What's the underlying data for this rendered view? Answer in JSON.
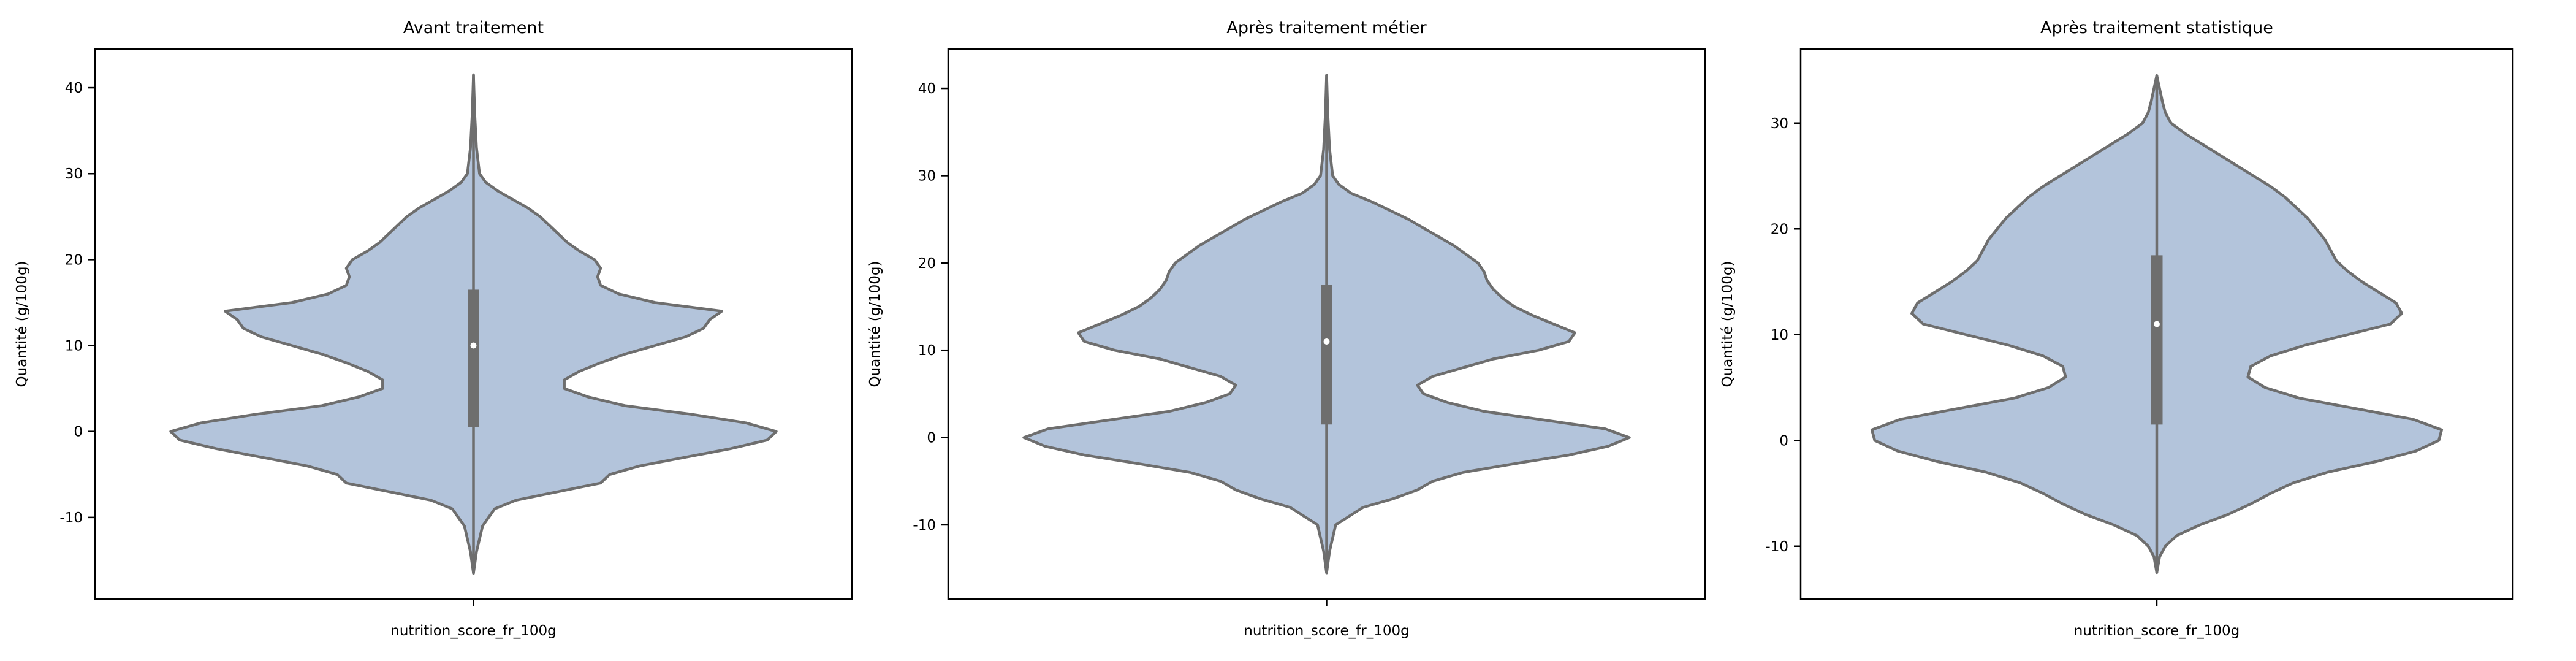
{
  "colors": {
    "violin_fill": "#b3c4db",
    "violin_edge": "#6e6e6e",
    "box": "#6e6e6e",
    "median": "#ffffff",
    "frame": "#000000"
  },
  "chart_data": [
    {
      "type": "violin",
      "title": "Avant traitement",
      "xlabel": "nutrition_score_fr_100g",
      "ylabel": "Quantité (g/100g)",
      "categories": [
        "nutrition_score_fr_100g"
      ],
      "ylim": [
        -19.5,
        44.5
      ],
      "yticks": [
        -10,
        0,
        10,
        20,
        30,
        40
      ],
      "whisker": [
        -16.5,
        41.5
      ],
      "box": {
        "q1": 0.5,
        "median": 10,
        "q3": 16.5
      },
      "density": [
        [
          -16.5,
          0.0
        ],
        [
          -14,
          0.01
        ],
        [
          -11,
          0.03
        ],
        [
          -9,
          0.07
        ],
        [
          -8,
          0.14
        ],
        [
          -7,
          0.28
        ],
        [
          -6,
          0.42
        ],
        [
          -5,
          0.45
        ],
        [
          -4,
          0.55
        ],
        [
          -3,
          0.7
        ],
        [
          -2,
          0.85
        ],
        [
          -1,
          0.97
        ],
        [
          0,
          1.0
        ],
        [
          1,
          0.9
        ],
        [
          2,
          0.72
        ],
        [
          3,
          0.5
        ],
        [
          4,
          0.38
        ],
        [
          5,
          0.3
        ],
        [
          6,
          0.3
        ],
        [
          7,
          0.35
        ],
        [
          8,
          0.42
        ],
        [
          9,
          0.5
        ],
        [
          10,
          0.6
        ],
        [
          11,
          0.7
        ],
        [
          12,
          0.76
        ],
        [
          13,
          0.78
        ],
        [
          14,
          0.82
        ],
        [
          15,
          0.6
        ],
        [
          16,
          0.48
        ],
        [
          17,
          0.42
        ],
        [
          18,
          0.41
        ],
        [
          19,
          0.42
        ],
        [
          20,
          0.4
        ],
        [
          21,
          0.35
        ],
        [
          22,
          0.31
        ],
        [
          23,
          0.28
        ],
        [
          24,
          0.25
        ],
        [
          25,
          0.22
        ],
        [
          26,
          0.18
        ],
        [
          27,
          0.13
        ],
        [
          28,
          0.08
        ],
        [
          29,
          0.04
        ],
        [
          30,
          0.02
        ],
        [
          33,
          0.01
        ],
        [
          37,
          0.004
        ],
        [
          41.5,
          0.0
        ]
      ]
    },
    {
      "type": "violin",
      "title": "Après traitement métier",
      "xlabel": "nutrition_score_fr_100g",
      "ylabel": "Quantité (g/100g)",
      "categories": [
        "nutrition_score_fr_100g"
      ],
      "ylim": [
        -18.5,
        44.5
      ],
      "yticks": [
        -10,
        0,
        10,
        20,
        30,
        40
      ],
      "whisker": [
        -15.5,
        41.5
      ],
      "box": {
        "q1": 1.5,
        "median": 11,
        "q3": 17.5
      },
      "density": [
        [
          -15.5,
          0.0
        ],
        [
          -13,
          0.01
        ],
        [
          -10,
          0.03
        ],
        [
          -8,
          0.12
        ],
        [
          -7,
          0.22
        ],
        [
          -6,
          0.3
        ],
        [
          -5,
          0.35
        ],
        [
          -4,
          0.45
        ],
        [
          -3,
          0.62
        ],
        [
          -2,
          0.8
        ],
        [
          -1,
          0.93
        ],
        [
          0,
          1.0
        ],
        [
          1,
          0.92
        ],
        [
          2,
          0.72
        ],
        [
          3,
          0.52
        ],
        [
          4,
          0.4
        ],
        [
          5,
          0.32
        ],
        [
          6,
          0.3
        ],
        [
          7,
          0.35
        ],
        [
          8,
          0.45
        ],
        [
          9,
          0.55
        ],
        [
          10,
          0.7
        ],
        [
          11,
          0.8
        ],
        [
          12,
          0.82
        ],
        [
          13,
          0.75
        ],
        [
          14,
          0.68
        ],
        [
          15,
          0.62
        ],
        [
          16,
          0.58
        ],
        [
          17,
          0.55
        ],
        [
          18,
          0.53
        ],
        [
          19,
          0.52
        ],
        [
          20,
          0.5
        ],
        [
          21,
          0.46
        ],
        [
          22,
          0.42
        ],
        [
          23,
          0.37
        ],
        [
          24,
          0.32
        ],
        [
          25,
          0.27
        ],
        [
          26,
          0.21
        ],
        [
          27,
          0.15
        ],
        [
          28,
          0.08
        ],
        [
          29,
          0.04
        ],
        [
          30,
          0.02
        ],
        [
          33,
          0.01
        ],
        [
          37,
          0.004
        ],
        [
          41.5,
          0.0
        ]
      ]
    },
    {
      "type": "violin",
      "title": "Après traitement statistique",
      "xlabel": "nutrition_score_fr_100g",
      "ylabel": "Quantité (g/100g)",
      "categories": [
        "nutrition_score_fr_100g"
      ],
      "ylim": [
        -15,
        37
      ],
      "yticks": [
        -10,
        0,
        10,
        20,
        30
      ],
      "whisker": [
        -12.5,
        34.5
      ],
      "box": {
        "q1": 1.5,
        "median": 11,
        "q3": 17.5
      },
      "density": [
        [
          -12.5,
          0.0
        ],
        [
          -11,
          0.01
        ],
        [
          -10,
          0.03
        ],
        [
          -9,
          0.07
        ],
        [
          -8,
          0.15
        ],
        [
          -7,
          0.25
        ],
        [
          -6,
          0.33
        ],
        [
          -5,
          0.4
        ],
        [
          -4,
          0.48
        ],
        [
          -3,
          0.6
        ],
        [
          -2,
          0.77
        ],
        [
          -1,
          0.91
        ],
        [
          0,
          0.99
        ],
        [
          1,
          1.0
        ],
        [
          2,
          0.9
        ],
        [
          3,
          0.7
        ],
        [
          4,
          0.5
        ],
        [
          5,
          0.38
        ],
        [
          6,
          0.32
        ],
        [
          7,
          0.33
        ],
        [
          8,
          0.4
        ],
        [
          9,
          0.52
        ],
        [
          10,
          0.67
        ],
        [
          11,
          0.82
        ],
        [
          12,
          0.86
        ],
        [
          13,
          0.84
        ],
        [
          14,
          0.78
        ],
        [
          15,
          0.72
        ],
        [
          16,
          0.67
        ],
        [
          17,
          0.63
        ],
        [
          18,
          0.61
        ],
        [
          19,
          0.59
        ],
        [
          20,
          0.56
        ],
        [
          21,
          0.53
        ],
        [
          22,
          0.49
        ],
        [
          23,
          0.45
        ],
        [
          24,
          0.4
        ],
        [
          25,
          0.34
        ],
        [
          26,
          0.28
        ],
        [
          27,
          0.22
        ],
        [
          28,
          0.16
        ],
        [
          29,
          0.1
        ],
        [
          30,
          0.05
        ],
        [
          31,
          0.03
        ],
        [
          32,
          0.02
        ],
        [
          34.5,
          0.0
        ]
      ]
    }
  ]
}
